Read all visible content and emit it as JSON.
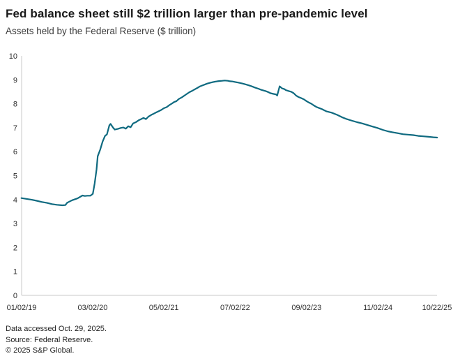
{
  "header": {
    "title": "Fed balance sheet still $2 trillion larger than pre-pandemic level",
    "subtitle": "Assets held by the Federal Reserve ($ trillion)"
  },
  "footer": {
    "line1": "Data accessed Oct. 29, 2025.",
    "line2": "Source: Federal Reserve.",
    "line3": "© 2025 S&P Global."
  },
  "colors": {
    "line": "#0f6a80",
    "axis": "#c9c9c9",
    "tick_text": "#2e2e2e"
  },
  "chart_data": {
    "type": "line",
    "title": "Fed balance sheet still $2 trillion larger than pre-pandemic level",
    "ylabel": "Assets held by the Federal Reserve ($ trillion)",
    "grid": false,
    "legend": "none",
    "x_axis": {
      "min": 2019.003,
      "max": 2025.808,
      "ticks": [
        {
          "t": 2019.003,
          "label": "01/02/19"
        },
        {
          "t": 2020.167,
          "label": "03/02/20"
        },
        {
          "t": 2021.334,
          "label": "05/02/21"
        },
        {
          "t": 2022.501,
          "label": "07/02/22"
        },
        {
          "t": 2023.671,
          "label": "09/02/23"
        },
        {
          "t": 2024.839,
          "label": "11/02/24"
        },
        {
          "t": 2025.808,
          "label": "10/22/25"
        }
      ]
    },
    "y_axis": {
      "min": 0,
      "max": 10,
      "ticks": [
        0,
        1,
        2,
        3,
        4,
        5,
        6,
        7,
        8,
        9,
        10
      ]
    },
    "series": [
      {
        "name": "Assets held by the Federal Reserve ($ trillion)",
        "color": "#0f6a80",
        "points": [
          [
            2019.0,
            4.06
          ],
          [
            2019.08,
            4.03
          ],
          [
            2019.17,
            3.99
          ],
          [
            2019.25,
            3.95
          ],
          [
            2019.33,
            3.9
          ],
          [
            2019.42,
            3.86
          ],
          [
            2019.5,
            3.81
          ],
          [
            2019.58,
            3.78
          ],
          [
            2019.67,
            3.76
          ],
          [
            2019.72,
            3.77
          ],
          [
            2019.75,
            3.87
          ],
          [
            2019.83,
            3.97
          ],
          [
            2019.92,
            4.05
          ],
          [
            2020.0,
            4.17
          ],
          [
            2020.04,
            4.15
          ],
          [
            2020.08,
            4.16
          ],
          [
            2020.13,
            4.16
          ],
          [
            2020.17,
            4.24
          ],
          [
            2020.2,
            4.67
          ],
          [
            2020.23,
            5.25
          ],
          [
            2020.25,
            5.81
          ],
          [
            2020.29,
            6.08
          ],
          [
            2020.33,
            6.42
          ],
          [
            2020.37,
            6.66
          ],
          [
            2020.4,
            6.72
          ],
          [
            2020.44,
            7.1
          ],
          [
            2020.46,
            7.16
          ],
          [
            2020.5,
            7.01
          ],
          [
            2020.53,
            6.92
          ],
          [
            2020.58,
            6.95
          ],
          [
            2020.63,
            6.99
          ],
          [
            2020.67,
            7.01
          ],
          [
            2020.71,
            6.96
          ],
          [
            2020.75,
            7.06
          ],
          [
            2020.79,
            7.02
          ],
          [
            2020.83,
            7.18
          ],
          [
            2020.88,
            7.24
          ],
          [
            2020.92,
            7.31
          ],
          [
            2020.96,
            7.36
          ],
          [
            2021.0,
            7.41
          ],
          [
            2021.04,
            7.36
          ],
          [
            2021.08,
            7.46
          ],
          [
            2021.13,
            7.54
          ],
          [
            2021.17,
            7.59
          ],
          [
            2021.21,
            7.64
          ],
          [
            2021.25,
            7.69
          ],
          [
            2021.29,
            7.74
          ],
          [
            2021.33,
            7.81
          ],
          [
            2021.38,
            7.86
          ],
          [
            2021.42,
            7.94
          ],
          [
            2021.46,
            8.0
          ],
          [
            2021.5,
            8.07
          ],
          [
            2021.54,
            8.11
          ],
          [
            2021.58,
            8.2
          ],
          [
            2021.63,
            8.27
          ],
          [
            2021.67,
            8.34
          ],
          [
            2021.71,
            8.41
          ],
          [
            2021.75,
            8.48
          ],
          [
            2021.79,
            8.53
          ],
          [
            2021.83,
            8.59
          ],
          [
            2021.88,
            8.66
          ],
          [
            2021.92,
            8.72
          ],
          [
            2021.96,
            8.76
          ],
          [
            2022.0,
            8.8
          ],
          [
            2022.04,
            8.84
          ],
          [
            2022.08,
            8.87
          ],
          [
            2022.13,
            8.9
          ],
          [
            2022.17,
            8.92
          ],
          [
            2022.21,
            8.94
          ],
          [
            2022.25,
            8.95
          ],
          [
            2022.29,
            8.96
          ],
          [
            2022.33,
            8.97
          ],
          [
            2022.38,
            8.96
          ],
          [
            2022.42,
            8.94
          ],
          [
            2022.46,
            8.93
          ],
          [
            2022.5,
            8.91
          ],
          [
            2022.54,
            8.89
          ],
          [
            2022.58,
            8.87
          ],
          [
            2022.63,
            8.84
          ],
          [
            2022.67,
            8.81
          ],
          [
            2022.71,
            8.78
          ],
          [
            2022.75,
            8.75
          ],
          [
            2022.79,
            8.71
          ],
          [
            2022.83,
            8.67
          ],
          [
            2022.88,
            8.63
          ],
          [
            2022.92,
            8.59
          ],
          [
            2022.96,
            8.56
          ],
          [
            2023.0,
            8.53
          ],
          [
            2023.04,
            8.49
          ],
          [
            2023.08,
            8.44
          ],
          [
            2023.13,
            8.41
          ],
          [
            2023.17,
            8.39
          ],
          [
            2023.19,
            8.34
          ],
          [
            2023.23,
            8.73
          ],
          [
            2023.27,
            8.64
          ],
          [
            2023.31,
            8.61
          ],
          [
            2023.33,
            8.57
          ],
          [
            2023.38,
            8.53
          ],
          [
            2023.42,
            8.5
          ],
          [
            2023.46,
            8.44
          ],
          [
            2023.5,
            8.34
          ],
          [
            2023.54,
            8.28
          ],
          [
            2023.58,
            8.24
          ],
          [
            2023.63,
            8.18
          ],
          [
            2023.67,
            8.11
          ],
          [
            2023.71,
            8.05
          ],
          [
            2023.75,
            8.0
          ],
          [
            2023.79,
            7.93
          ],
          [
            2023.83,
            7.87
          ],
          [
            2023.88,
            7.82
          ],
          [
            2023.92,
            7.78
          ],
          [
            2023.96,
            7.73
          ],
          [
            2024.0,
            7.68
          ],
          [
            2024.08,
            7.63
          ],
          [
            2024.17,
            7.54
          ],
          [
            2024.25,
            7.44
          ],
          [
            2024.33,
            7.36
          ],
          [
            2024.42,
            7.29
          ],
          [
            2024.5,
            7.23
          ],
          [
            2024.58,
            7.18
          ],
          [
            2024.67,
            7.11
          ],
          [
            2024.75,
            7.05
          ],
          [
            2024.83,
            6.99
          ],
          [
            2024.92,
            6.91
          ],
          [
            2025.0,
            6.85
          ],
          [
            2025.08,
            6.81
          ],
          [
            2025.17,
            6.77
          ],
          [
            2025.25,
            6.73
          ],
          [
            2025.33,
            6.71
          ],
          [
            2025.42,
            6.69
          ],
          [
            2025.5,
            6.66
          ],
          [
            2025.58,
            6.64
          ],
          [
            2025.67,
            6.62
          ],
          [
            2025.75,
            6.6
          ],
          [
            2025.81,
            6.59
          ]
        ]
      }
    ]
  }
}
